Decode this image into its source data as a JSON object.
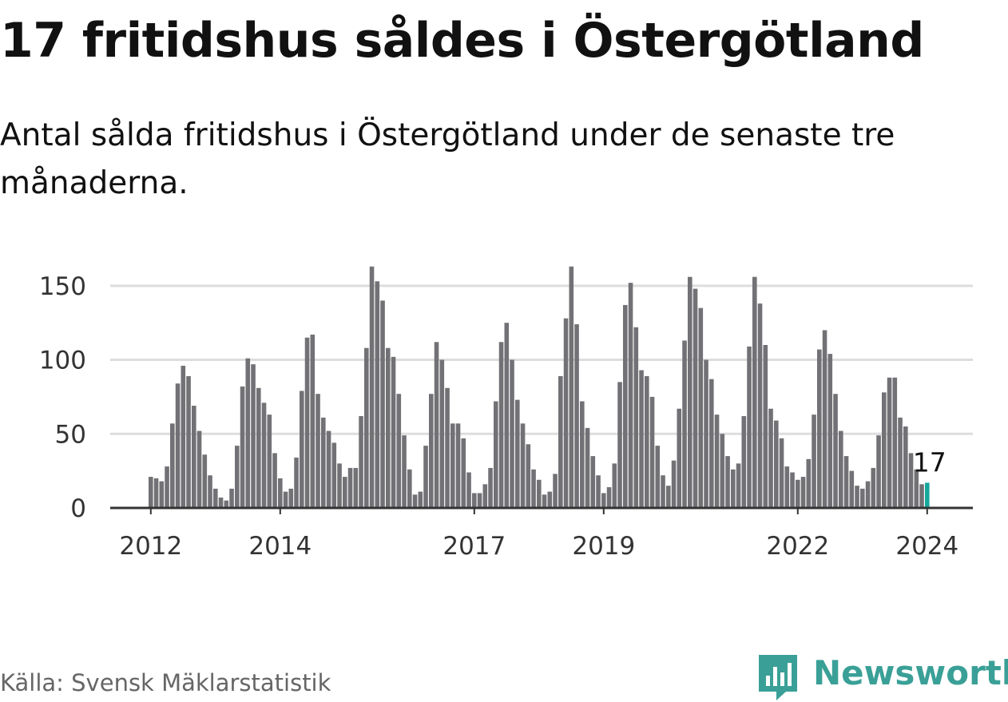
{
  "title": "17 fritidshus såldes i Östergötland",
  "subtitle": "Antal sålda fritidshus i Östergötland under de senaste tre månaderna.",
  "source": "Källa: Svensk Mäklarstatistik",
  "brand": {
    "name": "Newsworthy",
    "icon": "newsworthy-logo-icon"
  },
  "colors": {
    "bar": "#727276",
    "highlight": "#16a79c",
    "grid": "#dddddd",
    "baseline": "#333333",
    "text": "#111111",
    "muted": "#666666",
    "brand": "#3aa097"
  },
  "chart_data": {
    "type": "bar",
    "title": "17 fritidshus såldes i Östergötland",
    "xlabel": "",
    "ylabel": "",
    "ylim": [
      0,
      165
    ],
    "yticks": [
      0,
      50,
      100,
      150
    ],
    "grid": true,
    "first_period": "2012-01",
    "x_tick_labels": [
      {
        "label": "2012",
        "index": 0
      },
      {
        "label": "2014",
        "index": 24
      },
      {
        "label": "2017",
        "index": 60
      },
      {
        "label": "2019",
        "index": 84
      },
      {
        "label": "2022",
        "index": 120
      },
      {
        "label": "2024",
        "index": 144
      }
    ],
    "values": [
      21,
      20,
      18,
      28,
      57,
      84,
      96,
      89,
      69,
      52,
      36,
      22,
      13,
      7,
      5,
      13,
      42,
      82,
      101,
      97,
      81,
      71,
      63,
      37,
      20,
      11,
      13,
      34,
      79,
      115,
      117,
      77,
      61,
      52,
      44,
      30,
      21,
      27,
      27,
      62,
      108,
      163,
      153,
      140,
      108,
      102,
      77,
      49,
      26,
      9,
      11,
      42,
      77,
      112,
      100,
      81,
      57,
      57,
      47,
      24,
      10,
      10,
      16,
      27,
      72,
      112,
      125,
      100,
      73,
      57,
      43,
      26,
      19,
      9,
      11,
      23,
      89,
      128,
      163,
      124,
      72,
      54,
      35,
      22,
      10,
      14,
      30,
      85,
      137,
      152,
      122,
      93,
      89,
      75,
      42,
      22,
      15,
      32,
      67,
      113,
      156,
      148,
      135,
      100,
      87,
      63,
      50,
      35,
      26,
      30,
      62,
      109,
      156,
      138,
      110,
      67,
      59,
      47,
      28,
      24,
      19,
      21,
      33,
      63,
      107,
      120,
      104,
      77,
      52,
      35,
      25,
      15,
      13,
      18,
      27,
      49,
      78,
      88,
      88,
      61,
      55,
      37,
      26,
      16,
      17
    ],
    "highlight": {
      "index": 144,
      "label": "17"
    }
  }
}
